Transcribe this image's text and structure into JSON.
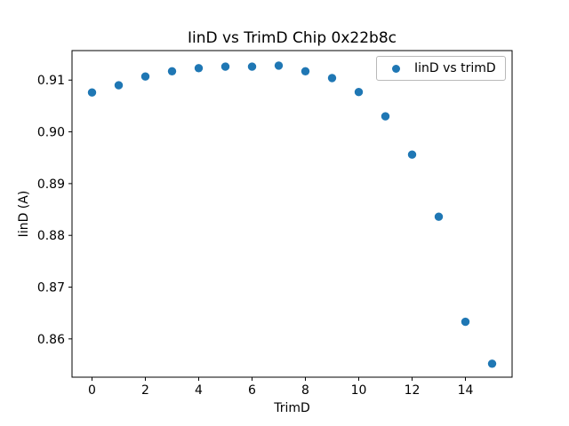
{
  "chart_data": {
    "type": "scatter",
    "title": "IinD vs TrimD Chip 0x22b8c",
    "xlabel": "TrimD",
    "ylabel": "IinD (A)",
    "xlim": [
      -0.75,
      15.75
    ],
    "ylim": [
      0.8526,
      0.9157
    ],
    "xticks": [
      0,
      2,
      4,
      6,
      8,
      10,
      12,
      14
    ],
    "xtick_labels": [
      "0",
      "2",
      "4",
      "6",
      "8",
      "10",
      "12",
      "14"
    ],
    "yticks": [
      0.91,
      0.9,
      0.89,
      0.88,
      0.87,
      0.86
    ],
    "ytick_labels": [
      "0.91",
      "0.90",
      "0.89",
      "0.88",
      "0.87",
      "0.86"
    ],
    "grid": false,
    "legend": {
      "position": "upper right",
      "entries": [
        "IinD vs trimD"
      ]
    },
    "series": [
      {
        "name": "IinD vs trimD",
        "marker": "circle",
        "color": "#1f77b4",
        "x": [
          0,
          1,
          2,
          3,
          4,
          5,
          6,
          7,
          8,
          9,
          10,
          11,
          12,
          13,
          14,
          15
        ],
        "y": [
          0.9076,
          0.909,
          0.9107,
          0.9117,
          0.9123,
          0.9126,
          0.9126,
          0.9128,
          0.9117,
          0.9104,
          0.9077,
          0.903,
          0.8956,
          0.8836,
          0.8633,
          0.8552
        ]
      }
    ]
  },
  "colors": {
    "background": "#ffffff",
    "text": "#000000",
    "frame": "#000000",
    "legend_border": "#b9b9b9",
    "marker": "#1f77b4"
  }
}
